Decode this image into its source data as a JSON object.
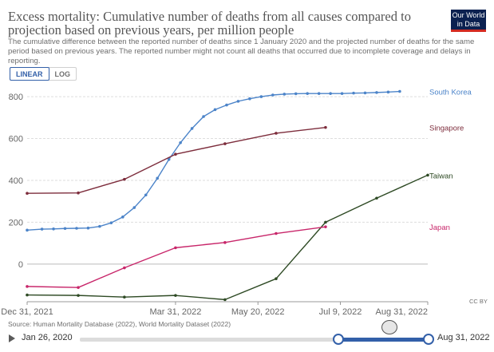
{
  "header": {
    "title": "Excess mortality: Cumulative number of deaths from all causes compared to projection based on previous years, per million people",
    "subtitle": "The cumulative difference between the reported number of deaths since 1 January 2020 and the projected number of deaths for the same period based on previous years. The reported number might not count all deaths that occurred due to incomplete coverage and delays in reporting.",
    "logo_text": "Our World in Data"
  },
  "controls": {
    "linear_label": "LINEAR",
    "log_label": "LOG",
    "active_scale": "linear"
  },
  "colors": {
    "South Korea": "#4c84c9",
    "Singapore": "#7d2d3c",
    "Taiwan": "#2e4a24",
    "Japan": "#c8266a",
    "grid": "#dddddd",
    "axis_text": "#666666",
    "accent": "#3360a9"
  },
  "chart_data": {
    "type": "line",
    "x_axis": {
      "type": "date",
      "range": [
        "2021-12-31",
        "2022-08-31"
      ],
      "tick_values": [
        "2021-12-31",
        "2022-03-31",
        "2022-05-20",
        "2022-07-09",
        "2022-08-31"
      ],
      "tick_labels": [
        "Dec 31, 2021",
        "Mar 31, 2022",
        "May 20, 2022",
        "Jul 9, 2022",
        "Aug 31, 2022"
      ]
    },
    "y_axis": {
      "ticks": [
        0,
        200,
        400,
        600,
        800
      ],
      "range": [
        -180,
        850
      ],
      "grid": true
    },
    "series": [
      {
        "name": "South Korea",
        "labeled": true,
        "marker": true,
        "points": [
          [
            "2021-12-31",
            162
          ],
          [
            "2022-01-09",
            167
          ],
          [
            "2022-01-16",
            168
          ],
          [
            "2022-01-23",
            170
          ],
          [
            "2022-01-30",
            171
          ],
          [
            "2022-02-06",
            172
          ],
          [
            "2022-02-13",
            180
          ],
          [
            "2022-02-20",
            197
          ],
          [
            "2022-02-27",
            225
          ],
          [
            "2022-03-06",
            270
          ],
          [
            "2022-03-13",
            330
          ],
          [
            "2022-03-20",
            410
          ],
          [
            "2022-03-27",
            500
          ],
          [
            "2022-04-03",
            580
          ],
          [
            "2022-04-10",
            648
          ],
          [
            "2022-04-17",
            705
          ],
          [
            "2022-04-24",
            738
          ],
          [
            "2022-05-01",
            760
          ],
          [
            "2022-05-08",
            778
          ],
          [
            "2022-05-15",
            790
          ],
          [
            "2022-05-22",
            800
          ],
          [
            "2022-05-29",
            808
          ],
          [
            "2022-06-05",
            812
          ],
          [
            "2022-06-12",
            814
          ],
          [
            "2022-06-19",
            815
          ],
          [
            "2022-06-26",
            815
          ],
          [
            "2022-07-03",
            815
          ],
          [
            "2022-07-10",
            815
          ],
          [
            "2022-07-17",
            817
          ],
          [
            "2022-07-24",
            818
          ],
          [
            "2022-07-31",
            820
          ],
          [
            "2022-08-07",
            822
          ],
          [
            "2022-08-14",
            825
          ]
        ]
      },
      {
        "name": "Singapore",
        "labeled": true,
        "marker": true,
        "points": [
          [
            "2021-12-31",
            338
          ],
          [
            "2022-01-31",
            340
          ],
          [
            "2022-02-28",
            405
          ],
          [
            "2022-03-31",
            525
          ],
          [
            "2022-04-30",
            575
          ],
          [
            "2022-05-31",
            625
          ],
          [
            "2022-06-30",
            653
          ]
        ]
      },
      {
        "name": "Taiwan",
        "labeled": true,
        "marker": true,
        "points": [
          [
            "2021-12-31",
            -148
          ],
          [
            "2022-01-31",
            -150
          ],
          [
            "2022-02-28",
            -158
          ],
          [
            "2022-03-31",
            -150
          ],
          [
            "2022-04-30",
            -170
          ],
          [
            "2022-05-31",
            -70
          ],
          [
            "2022-06-30",
            200
          ],
          [
            "2022-07-31",
            315
          ],
          [
            "2022-08-31",
            425
          ]
        ]
      },
      {
        "name": "Japan",
        "labeled": true,
        "marker": true,
        "points": [
          [
            "2021-12-31",
            -107
          ],
          [
            "2022-01-31",
            -112
          ],
          [
            "2022-02-28",
            -18
          ],
          [
            "2022-03-31",
            78
          ],
          [
            "2022-04-30",
            103
          ],
          [
            "2022-05-31",
            146
          ],
          [
            "2022-06-30",
            178
          ]
        ]
      }
    ]
  },
  "footer": {
    "source": "Source: Human Mortality Database (2022), World Mortality Dataset (2022)",
    "license": "CC BY"
  },
  "timeline": {
    "start_label": "Jan 26, 2020",
    "end_label": "Aug 31, 2022"
  }
}
